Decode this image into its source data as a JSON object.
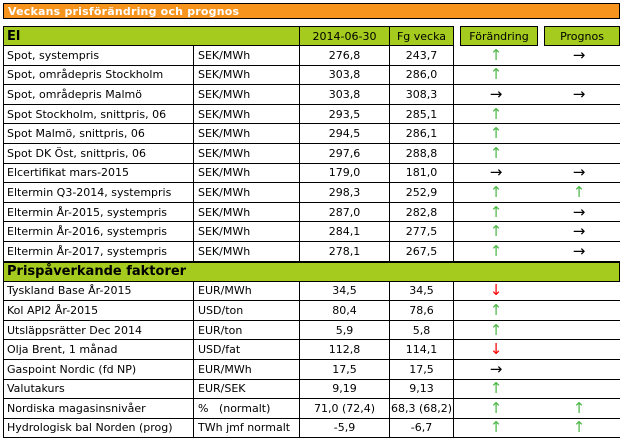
{
  "title": "Veckans prisförändring och prognos",
  "columns": {
    "date": "2014-06-30",
    "prev": "Fg vecka",
    "change": "Förändring",
    "forecast": "Prognos"
  },
  "icons": {
    "up": "↑",
    "down": "↓",
    "right": "→"
  },
  "colors": {
    "title_bar_bg": "#F7941D",
    "title_text": "#FFFFFF",
    "section_bg": "#A4CB1E",
    "arrow_green": "#4DB848",
    "arrow_red": "#FF0000",
    "arrow_black": "#000000"
  },
  "sections": [
    {
      "name": "El",
      "rows": [
        {
          "label": "Spot, systempris",
          "unit": "SEK/MWh",
          "current": "276,8",
          "previous": "243,7",
          "change": {
            "dir": "up",
            "color": "green"
          },
          "forecast": {
            "dir": "right",
            "color": "black"
          }
        },
        {
          "label": "Spot, områdepris Stockholm",
          "unit": "SEK/MWh",
          "current": "303,8",
          "previous": "286,0",
          "change": {
            "dir": "up",
            "color": "green"
          },
          "forecast": null
        },
        {
          "label": "Spot, områdepris Malmö",
          "unit": "SEK/MWh",
          "current": "303,8",
          "previous": "308,3",
          "change": {
            "dir": "right",
            "color": "black"
          },
          "forecast": {
            "dir": "right",
            "color": "black"
          }
        },
        {
          "label": "Spot Stockholm, snittpris,  06",
          "unit": "SEK/MWh",
          "current": "293,5",
          "previous": "285,1",
          "change": {
            "dir": "up",
            "color": "green"
          },
          "forecast": null
        },
        {
          "label": "Spot Malmö, snittpris,  06",
          "unit": "SEK/MWh",
          "current": "294,5",
          "previous": "286,1",
          "change": {
            "dir": "up",
            "color": "green"
          },
          "forecast": null
        },
        {
          "label": "Spot DK Öst, snittpris,  06",
          "unit": "SEK/MWh",
          "current": "297,6",
          "previous": "288,8",
          "change": {
            "dir": "up",
            "color": "green"
          },
          "forecast": null
        },
        {
          "label": "Elcertifikat mars-2015",
          "unit": "SEK/MWh",
          "current": "179,0",
          "previous": "181,0",
          "change": {
            "dir": "right",
            "color": "black"
          },
          "forecast": {
            "dir": "right",
            "color": "black"
          }
        },
        {
          "label": "Eltermin Q3-2014, systempris",
          "unit": "SEK/MWh",
          "current": "298,3",
          "previous": "252,9",
          "change": {
            "dir": "up",
            "color": "green"
          },
          "forecast": {
            "dir": "up",
            "color": "green"
          }
        },
        {
          "label": "Eltermin År-2015, systempris",
          "unit": "SEK/MWh",
          "current": "287,0",
          "previous": "282,8",
          "change": {
            "dir": "up",
            "color": "green"
          },
          "forecast": {
            "dir": "right",
            "color": "black"
          }
        },
        {
          "label": "Eltermin År-2016, systempris",
          "unit": "SEK/MWh",
          "current": "284,1",
          "previous": "277,5",
          "change": {
            "dir": "up",
            "color": "green"
          },
          "forecast": {
            "dir": "right",
            "color": "black"
          }
        },
        {
          "label": "Eltermin År-2017, systempris",
          "unit": "SEK/MWh",
          "current": "278,1",
          "previous": "267,5",
          "change": {
            "dir": "up",
            "color": "green"
          },
          "forecast": {
            "dir": "right",
            "color": "black"
          }
        }
      ]
    },
    {
      "name": "Prispåverkande faktorer",
      "rows": [
        {
          "label": "Tyskland Base År-2015",
          "unit": "EUR/MWh",
          "current": "34,5",
          "previous": "34,5",
          "change": {
            "dir": "down",
            "color": "red"
          },
          "forecast": null
        },
        {
          "label": "Kol API2 År-2015",
          "unit": "USD/ton",
          "current": "80,4",
          "previous": "78,6",
          "change": {
            "dir": "up",
            "color": "green"
          },
          "forecast": null
        },
        {
          "label": "Utsläppsrätter Dec 2014",
          "unit": "EUR/ton",
          "current": "5,9",
          "previous": "5,8",
          "change": {
            "dir": "up",
            "color": "green"
          },
          "forecast": null
        },
        {
          "label": "Olja Brent, 1 månad",
          "unit": "USD/fat",
          "current": "112,8",
          "previous": "114,1",
          "change": {
            "dir": "down",
            "color": "red"
          },
          "forecast": null
        },
        {
          "label": "Gaspoint Nordic (fd NP)",
          "unit": "EUR/MWh",
          "current": "17,5",
          "previous": "17,5",
          "change": {
            "dir": "right",
            "color": "black"
          },
          "forecast": null
        },
        {
          "label": "Valutakurs",
          "unit": "EUR/SEK",
          "current": "9,19",
          "previous": "9,13",
          "change": {
            "dir": "up",
            "color": "green"
          },
          "forecast": null
        },
        {
          "label": "Nordiska magasinsnivåer",
          "unit": "%   (normalt)",
          "current": "71,0 (72,4)",
          "previous": "68,3 (68,2)",
          "change": {
            "dir": "up",
            "color": "green"
          },
          "forecast": {
            "dir": "up",
            "color": "green"
          }
        },
        {
          "label": "Hydrologisk bal Norden (prog)",
          "unit": "TWh jmf normalt",
          "current": "-5,9",
          "previous": "-6,7",
          "change": {
            "dir": "up",
            "color": "green"
          },
          "forecast": {
            "dir": "up",
            "color": "green"
          }
        }
      ]
    }
  ]
}
